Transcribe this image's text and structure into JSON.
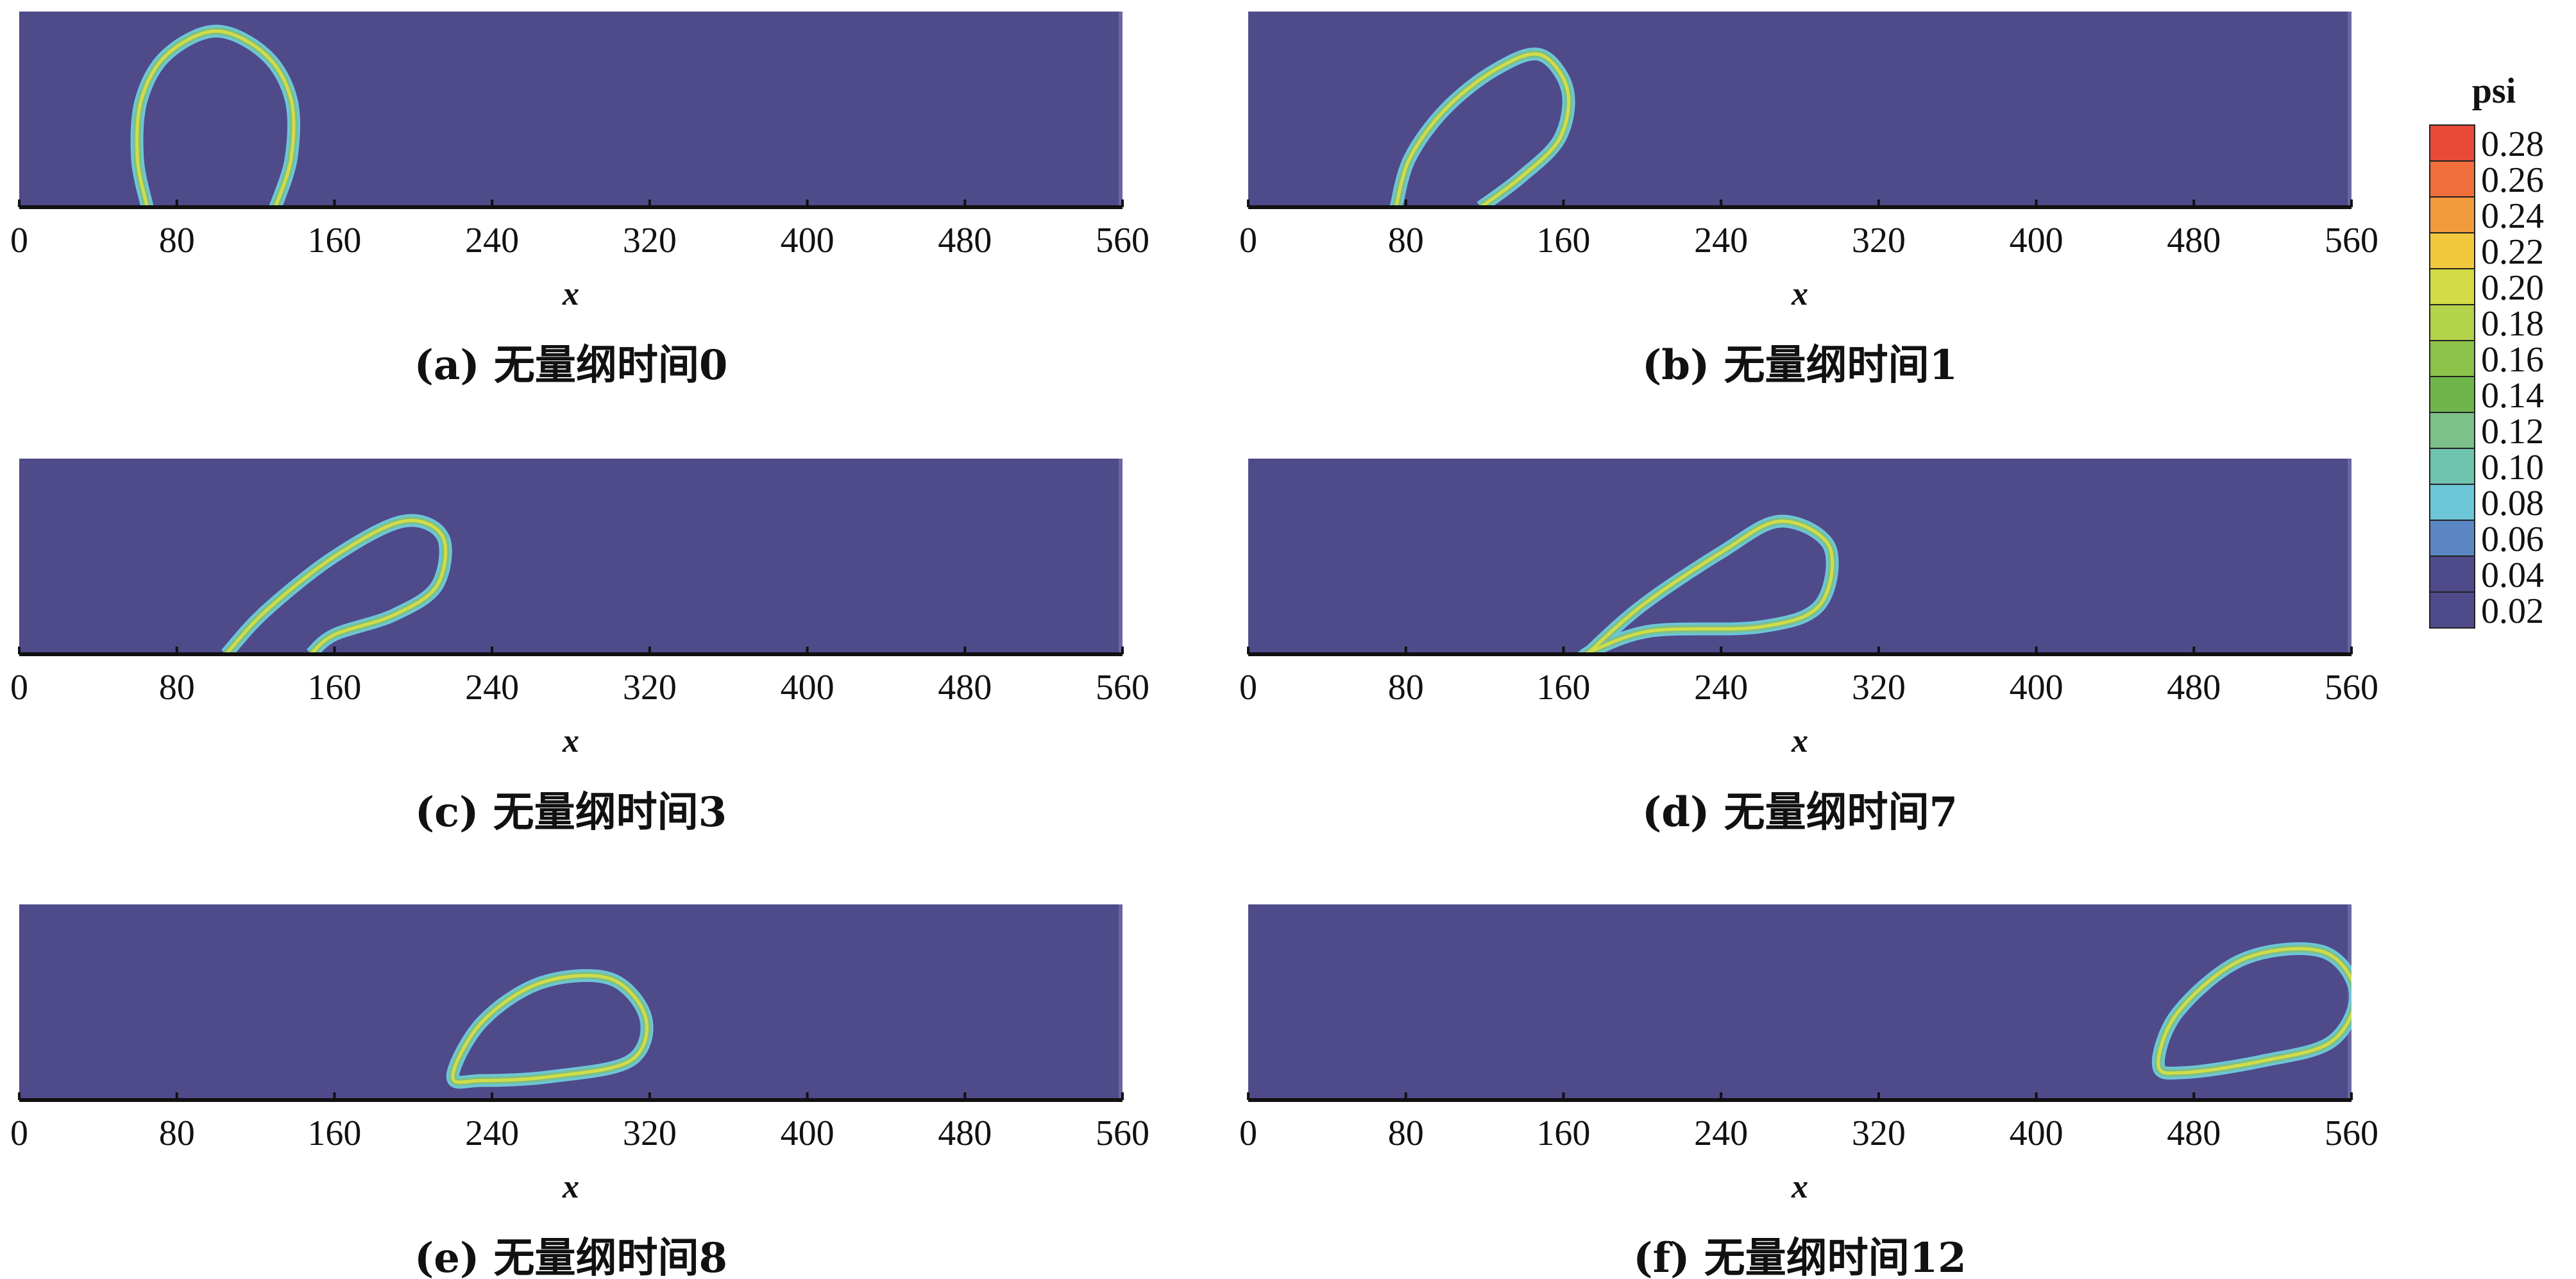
{
  "colorbar": {
    "title": "psi",
    "levels": [
      "0.28",
      "0.26",
      "0.24",
      "0.22",
      "0.20",
      "0.18",
      "0.16",
      "0.14",
      "0.12",
      "0.10",
      "0.08",
      "0.06",
      "0.04",
      "0.02"
    ],
    "colors": [
      "#e84a3a",
      "#ef6e3c",
      "#f29a3e",
      "#f2c93e",
      "#d3dc46",
      "#b2d34a",
      "#8cc24a",
      "#6fb54c",
      "#7cc08a",
      "#6fc4b0",
      "#6cc6d8",
      "#5b86c4",
      "#4f4a8a",
      "#4f4a8a"
    ]
  },
  "chart_data": [
    {
      "type": "heatmap",
      "caption": "(a) 无量纲时间0",
      "xlabel": "x",
      "xlim": [
        0,
        560
      ],
      "xticks": [
        "0",
        "80",
        "160",
        "240",
        "320",
        "400",
        "480",
        "560"
      ],
      "background_level": 0.02,
      "interface": [
        [
          65,
          0
        ],
        [
          60,
          25
        ],
        [
          62,
          55
        ],
        [
          75,
          78
        ],
        [
          100,
          90
        ],
        [
          125,
          78
        ],
        [
          138,
          55
        ],
        [
          138,
          25
        ],
        [
          130,
          0
        ]
      ]
    },
    {
      "type": "heatmap",
      "caption": "(b) 无量纲时间1",
      "xlabel": "x",
      "xlim": [
        0,
        560
      ],
      "xticks": [
        "0",
        "80",
        "160",
        "240",
        "320",
        "400",
        "480",
        "560"
      ],
      "background_level": 0.02,
      "interface": [
        [
          75,
          0
        ],
        [
          82,
          25
        ],
        [
          100,
          50
        ],
        [
          125,
          70
        ],
        [
          148,
          78
        ],
        [
          162,
          60
        ],
        [
          158,
          35
        ],
        [
          138,
          15
        ],
        [
          118,
          0
        ]
      ]
    },
    {
      "type": "heatmap",
      "caption": "(c) 无量纲时间3",
      "xlabel": "x",
      "xlim": [
        0,
        560
      ],
      "xticks": [
        "0",
        "80",
        "160",
        "240",
        "320",
        "400",
        "480",
        "560"
      ],
      "background_level": 0.02,
      "interface": [
        [
          105,
          0
        ],
        [
          125,
          22
        ],
        [
          160,
          50
        ],
        [
          195,
          68
        ],
        [
          215,
          60
        ],
        [
          212,
          35
        ],
        [
          190,
          20
        ],
        [
          160,
          10
        ],
        [
          148,
          0
        ]
      ]
    },
    {
      "type": "heatmap",
      "caption": "(d) 无量纲时间7",
      "xlabel": "x",
      "xlim": [
        0,
        560
      ],
      "xticks": [
        "0",
        "80",
        "160",
        "240",
        "320",
        "400",
        "480",
        "560"
      ],
      "background_level": 0.02,
      "interface": [
        [
          172,
          0
        ],
        [
          200,
          25
        ],
        [
          240,
          52
        ],
        [
          270,
          68
        ],
        [
          295,
          55
        ],
        [
          290,
          25
        ],
        [
          260,
          14
        ],
        [
          205,
          12
        ],
        [
          175,
          2
        ]
      ]
    },
    {
      "type": "heatmap",
      "caption": "(e) 无量纲时间8",
      "xlabel": "x",
      "xlim": [
        0,
        560
      ],
      "xticks": [
        "0",
        "80",
        "160",
        "240",
        "320",
        "400",
        "480",
        "560"
      ],
      "background_level": 0.02,
      "interface": [
        [
          220,
          12
        ],
        [
          235,
          40
        ],
        [
          265,
          60
        ],
        [
          300,
          62
        ],
        [
          318,
          42
        ],
        [
          310,
          20
        ],
        [
          270,
          12
        ],
        [
          235,
          10
        ]
      ]
    },
    {
      "type": "heatmap",
      "caption": "(f) 无量纲时间12",
      "xlabel": "x",
      "xlim": [
        0,
        560
      ],
      "xticks": [
        "0",
        "80",
        "160",
        "240",
        "320",
        "400",
        "480",
        "560"
      ],
      "background_level": 0.02,
      "interface": [
        [
          462,
          18
        ],
        [
          472,
          45
        ],
        [
          505,
          72
        ],
        [
          545,
          76
        ],
        [
          562,
          55
        ],
        [
          550,
          30
        ],
        [
          515,
          20
        ],
        [
          475,
          14
        ]
      ]
    }
  ]
}
